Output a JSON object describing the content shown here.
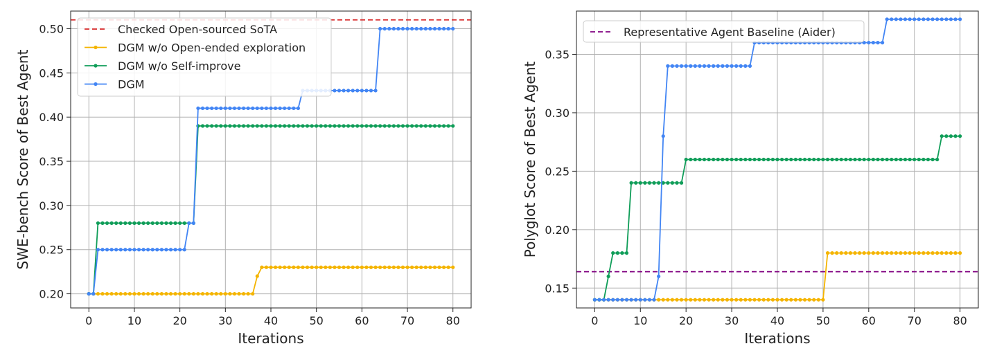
{
  "chart_data": [
    {
      "type": "line",
      "xlabel": "Iterations",
      "ylabel": "SWE-bench Score of Best Agent",
      "xlim": [
        -4,
        84
      ],
      "ylim": [
        0.184,
        0.52
      ],
      "xticks": [
        "0",
        "10",
        "20",
        "30",
        "40",
        "50",
        "60",
        "70",
        "80"
      ],
      "yticks": [
        "0.20",
        "0.25",
        "0.30",
        "0.35",
        "0.40",
        "0.45",
        "0.50"
      ],
      "grid": true,
      "legend_position": "top-left",
      "reference_line": {
        "name": "Checked Open-sourced SoTA",
        "y": 0.51,
        "color": "#d62728"
      },
      "series": [
        {
          "name": "DGM w/o Open-ended exploration",
          "color": "#F4B400",
          "steps": [
            [
              0,
              0.2
            ],
            [
              37,
              0.22
            ],
            [
              38,
              0.23
            ]
          ]
        },
        {
          "name": "DGM w/o Self-improve",
          "color": "#0F9D58",
          "steps": [
            [
              0,
              0.2
            ],
            [
              2,
              0.28
            ],
            [
              24,
              0.39
            ]
          ]
        },
        {
          "name": "DGM",
          "color": "#4285F4",
          "steps": [
            [
              0,
              0.2
            ],
            [
              2,
              0.25
            ],
            [
              22,
              0.28
            ],
            [
              24,
              0.41
            ],
            [
              47,
              0.43
            ],
            [
              64,
              0.5
            ]
          ]
        }
      ]
    },
    {
      "type": "line",
      "xlabel": "Iterations",
      "ylabel": "Polyglot Score of Best Agent",
      "xlim": [
        -4,
        84
      ],
      "ylim": [
        0.133,
        0.387
      ],
      "xticks": [
        "0",
        "10",
        "20",
        "30",
        "40",
        "50",
        "60",
        "70",
        "80"
      ],
      "yticks": [
        "0.15",
        "0.20",
        "0.25",
        "0.30",
        "0.35"
      ],
      "grid": true,
      "legend_position": "top-left",
      "reference_line": {
        "name": "Representative Agent Baseline (Aider)",
        "y": 0.164,
        "color": "#800080"
      },
      "series": [
        {
          "name": "DGM w/o Open-ended exploration",
          "color": "#F4B400",
          "steps": [
            [
              0,
              0.14
            ],
            [
              51,
              0.18
            ]
          ]
        },
        {
          "name": "DGM w/o Self-improve",
          "color": "#0F9D58",
          "steps": [
            [
              0,
              0.14
            ],
            [
              3,
              0.16
            ],
            [
              4,
              0.18
            ],
            [
              8,
              0.24
            ],
            [
              20,
              0.26
            ],
            [
              76,
              0.28
            ]
          ]
        },
        {
          "name": "DGM",
          "color": "#4285F4",
          "steps": [
            [
              0,
              0.14
            ],
            [
              14,
              0.16
            ],
            [
              15,
              0.28
            ],
            [
              16,
              0.34
            ],
            [
              35,
              0.36
            ],
            [
              64,
              0.38
            ]
          ]
        }
      ]
    }
  ]
}
